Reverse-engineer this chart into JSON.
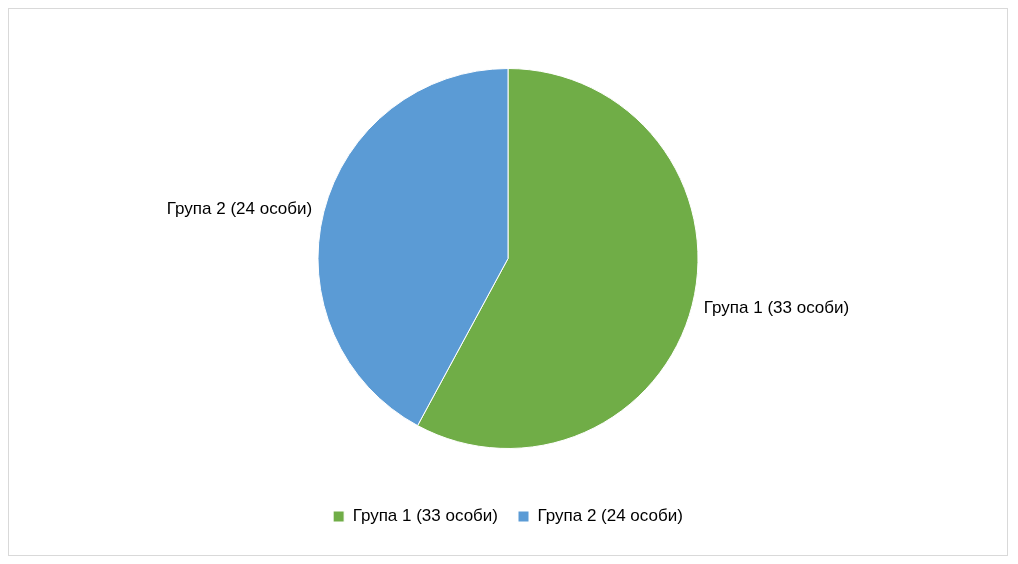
{
  "chart_data": {
    "type": "pie",
    "categories": [
      "Група 1 (33 особи)",
      "Група 2 (24 особи)"
    ],
    "values": [
      33,
      24
    ],
    "colors": [
      "#70ad47",
      "#5b9bd5"
    ],
    "legend": "bottom"
  }
}
